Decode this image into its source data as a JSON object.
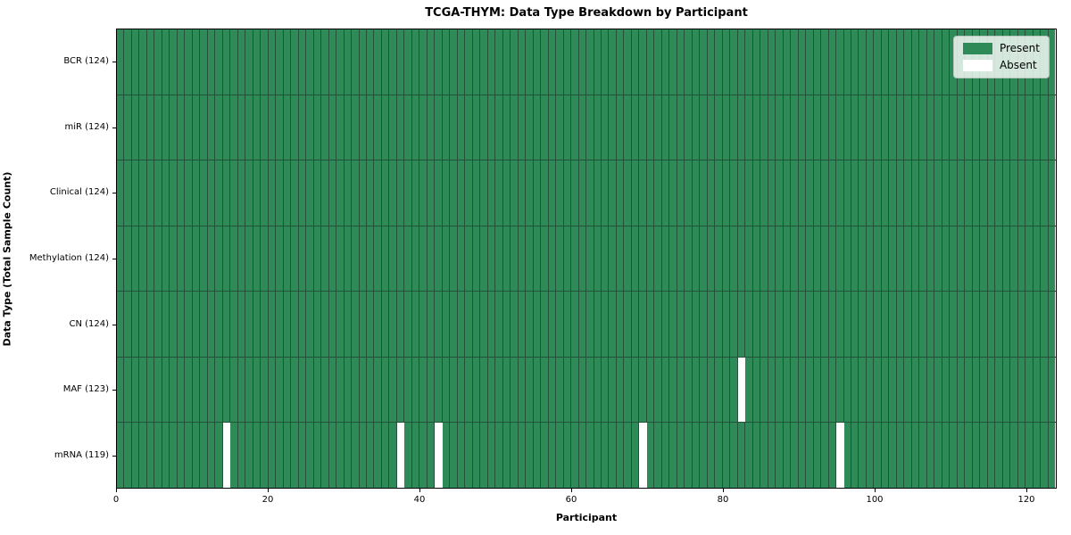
{
  "chart_data": {
    "type": "heatmap",
    "title": "TCGA-THYM: Data Type Breakdown by Participant",
    "xlabel": "Participant",
    "ylabel": "Data Type (Total Sample Count)",
    "x_range": [
      0,
      124
    ],
    "x_ticks": [
      0,
      20,
      40,
      60,
      80,
      100,
      120
    ],
    "n_participants": 124,
    "grid": false,
    "legend": {
      "position": "upper right",
      "entries": [
        {
          "label": "Present",
          "color": "#2e8b57"
        },
        {
          "label": "Absent",
          "color": "#ffffff"
        }
      ]
    },
    "rows": [
      {
        "label": "BCR (124)",
        "data_type": "BCR",
        "total_samples": 124,
        "absent_participants": []
      },
      {
        "label": "miR (124)",
        "data_type": "miR",
        "total_samples": 124,
        "absent_participants": []
      },
      {
        "label": "Clinical (124)",
        "data_type": "Clinical",
        "total_samples": 124,
        "absent_participants": []
      },
      {
        "label": "Methylation (124)",
        "data_type": "Methylation",
        "total_samples": 124,
        "absent_participants": []
      },
      {
        "label": "CN (124)",
        "data_type": "CN",
        "total_samples": 124,
        "absent_participants": []
      },
      {
        "label": "MAF (123)",
        "data_type": "MAF",
        "total_samples": 123,
        "absent_participants": [
          82
        ]
      },
      {
        "label": "mRNA (119)",
        "data_type": "mRNA",
        "total_samples": 119,
        "absent_participants": [
          14,
          37,
          42,
          69,
          95
        ]
      }
    ],
    "colors": {
      "present": "#2e8b57",
      "absent": "#ffffff",
      "cell_edge": "#24513a",
      "spine": "#000000"
    }
  }
}
